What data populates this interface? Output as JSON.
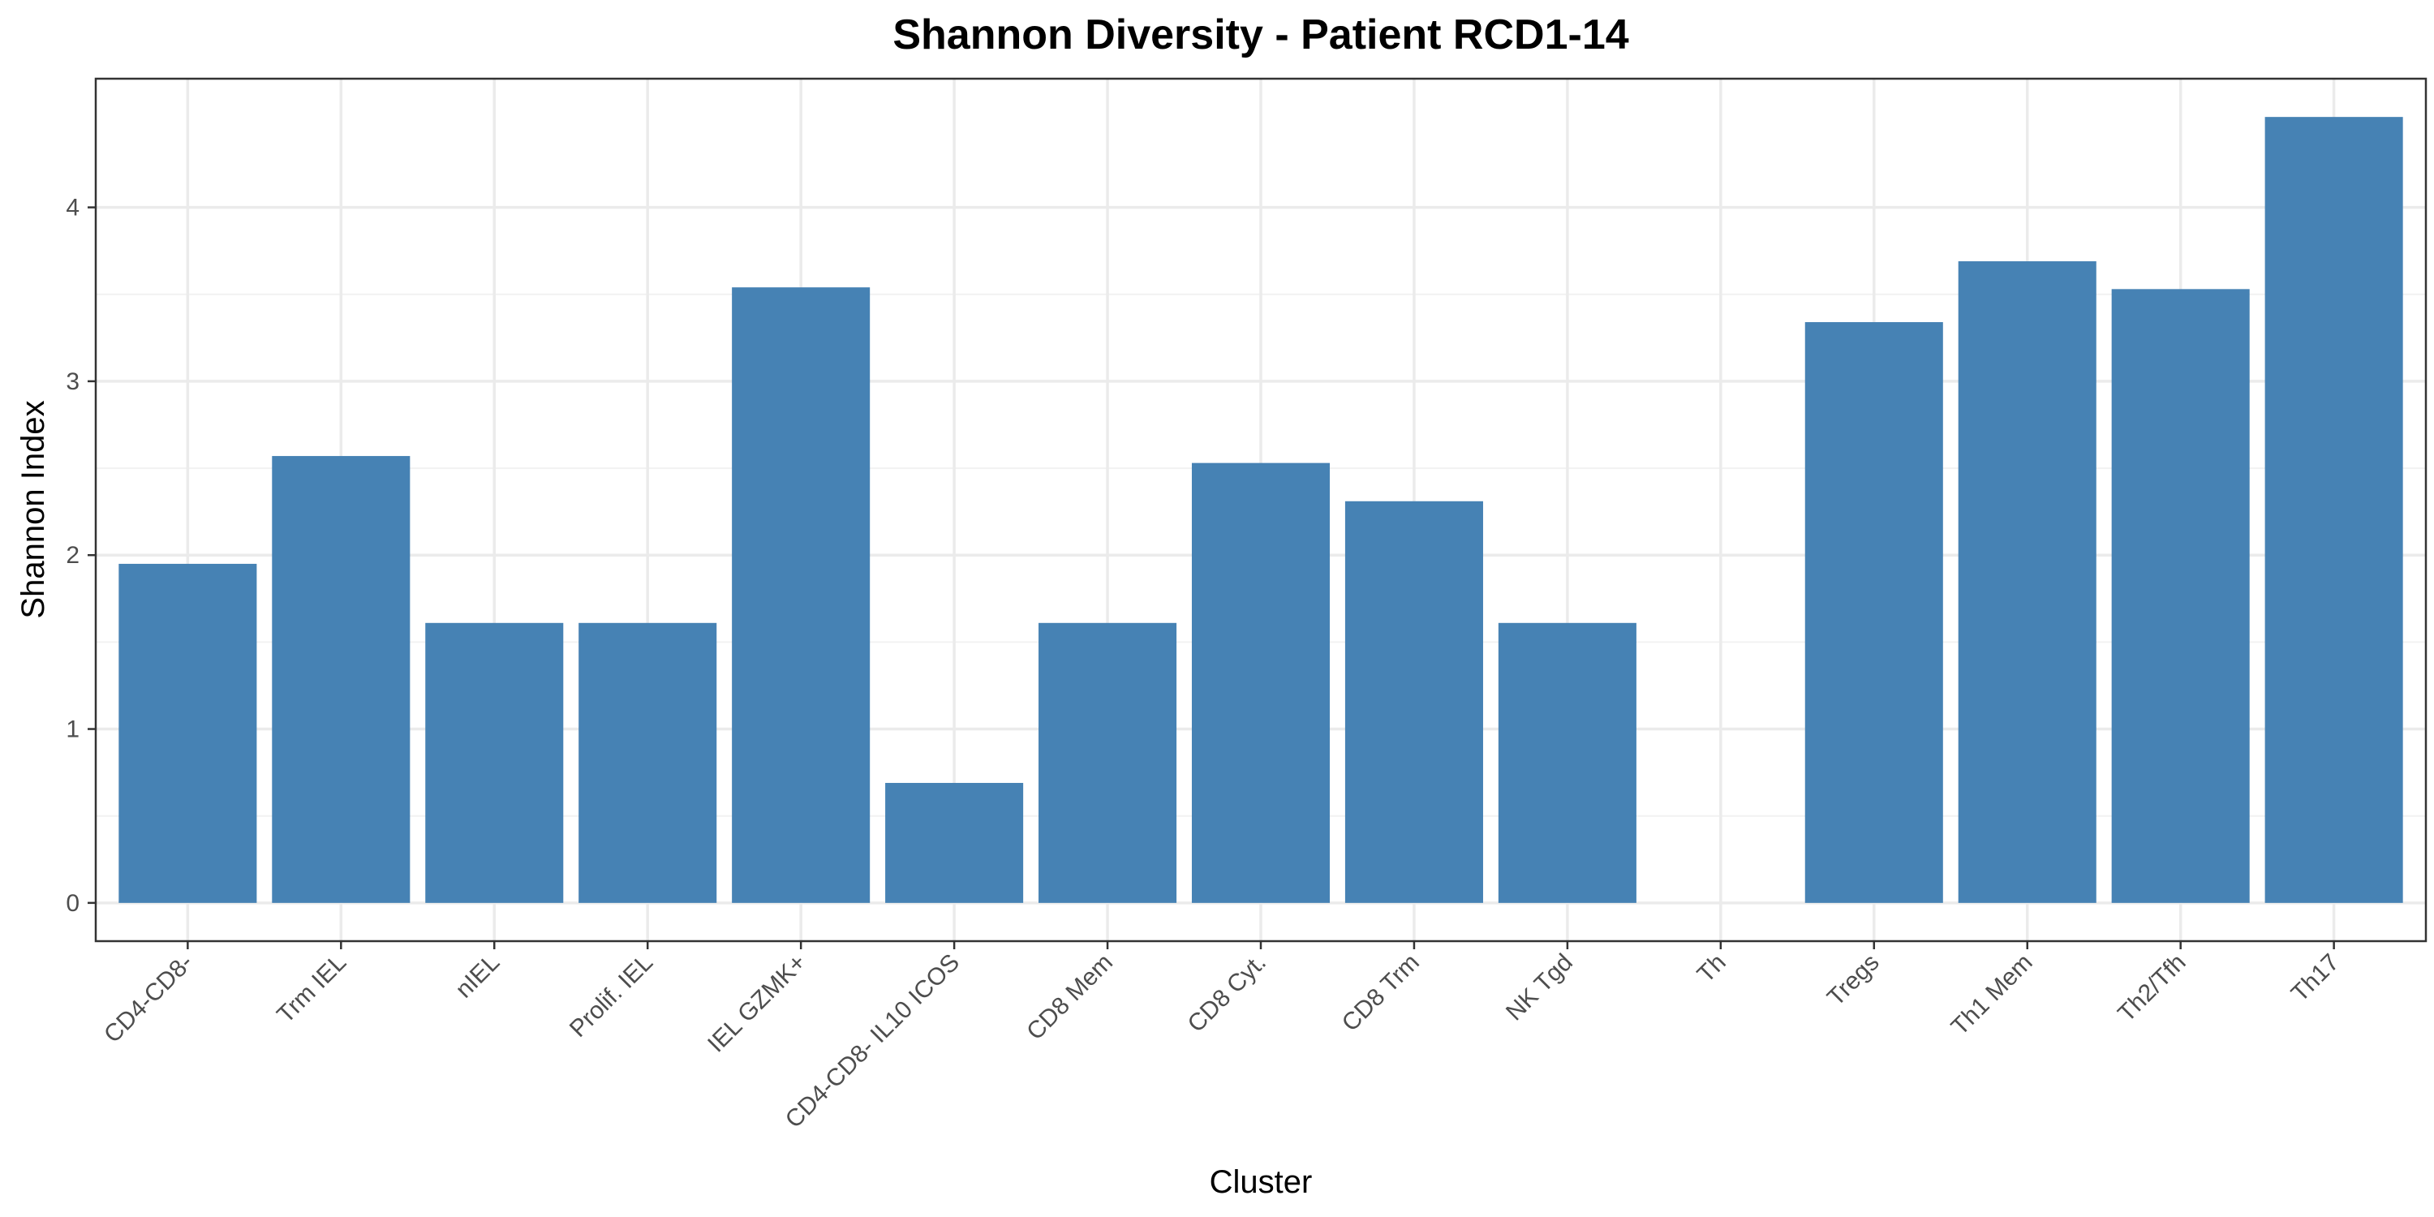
{
  "chart_data": {
    "type": "bar",
    "title": "Shannon Diversity - Patient RCD1-14",
    "xlabel": "Cluster",
    "ylabel": "Shannon Index",
    "categories": [
      "CD4-CD8-",
      "Trm IEL",
      "nIEL",
      "Prolif. IEL",
      "IEL GZMK+",
      "CD4-CD8- IL10 ICOS",
      "CD8 Mem",
      "CD8 Cyt.",
      "CD8 Trm",
      "NK Tgd",
      "Th",
      "Tregs",
      "Th1 Mem",
      "Th2/Tfh",
      "Th17"
    ],
    "values": [
      1.95,
      2.57,
      1.61,
      1.61,
      3.54,
      0.69,
      1.61,
      2.53,
      2.31,
      1.61,
      0,
      3.34,
      3.69,
      3.53,
      4.52
    ],
    "ylim": [
      -0.22,
      4.74
    ],
    "yticks": [
      0,
      1,
      2,
      3,
      4
    ],
    "bar_color": "#4682B4",
    "grid": true,
    "legend": "none"
  }
}
